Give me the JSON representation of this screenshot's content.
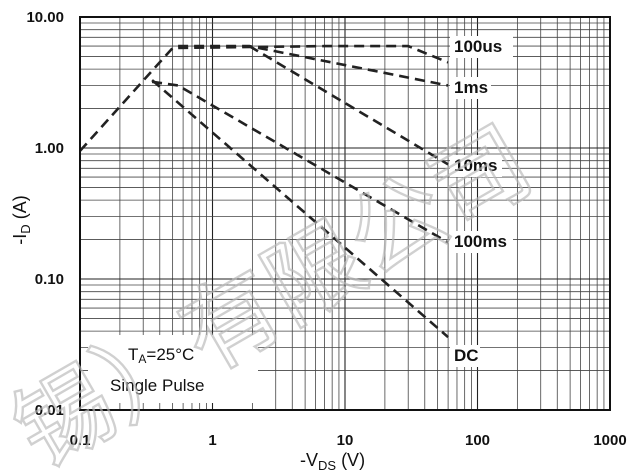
{
  "chart_data": {
    "type": "line",
    "title": "",
    "xlabel": "-V",
    "xlabel_sub": "DS",
    "xlabel_unit": " (V)",
    "ylabel": "-I",
    "ylabel_sub": "D",
    "ylabel_unit": " (A)",
    "x_scale": "log",
    "y_scale": "log",
    "xlim": [
      0.1,
      1000
    ],
    "ylim": [
      0.01,
      10
    ],
    "grid": true,
    "x_ticks": [
      "0.1",
      "1",
      "10",
      "100",
      "1000"
    ],
    "y_ticks": [
      "10.00",
      "1.00",
      "0.10",
      "0.01"
    ],
    "annotation": {
      "line1_main": "T",
      "line1_sub": "A",
      "line1_rest": "=25°C",
      "line2": "Single Pulse"
    },
    "series": [
      {
        "name": "100us",
        "x": [
          0.1,
          0.5,
          7,
          30,
          60
        ],
        "y": [
          0.95,
          5.8,
          6.0,
          6.0,
          4.5
        ]
      },
      {
        "name": "1ms",
        "x": [
          0.55,
          1.9,
          60
        ],
        "y": [
          6.0,
          6.0,
          3.0
        ]
      },
      {
        "name": "10ms",
        "x": [
          1.9,
          60
        ],
        "y": [
          6.0,
          0.75
        ]
      },
      {
        "name": "100ms",
        "x": [
          0.35,
          0.55,
          60
        ],
        "y": [
          3.2,
          3.0,
          0.19
        ]
      },
      {
        "name": "DC",
        "x": [
          0.35,
          60
        ],
        "y": [
          3.3,
          0.036
        ]
      }
    ],
    "series_labels": [
      "100us",
      "1ms",
      "10ms",
      "100ms",
      "DC"
    ],
    "watermark": "锡）有限公司"
  }
}
